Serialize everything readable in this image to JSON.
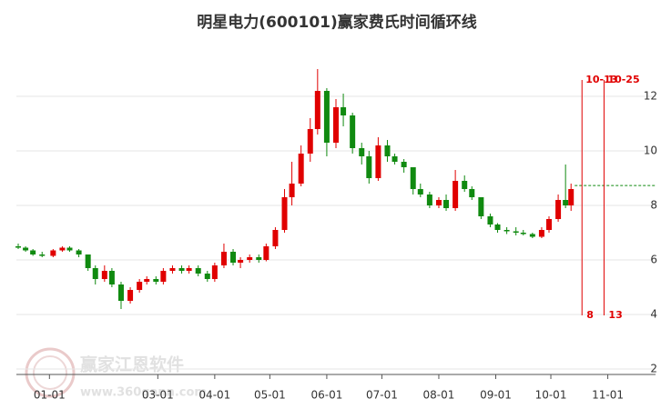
{
  "chart_data": {
    "type": "candlestick",
    "title": "明星电力(600101)赢家费氏时间循环线",
    "watermark": {
      "brand": "赢家江恩软件",
      "url": "www.360gann.com"
    },
    "up_color": "#e00000",
    "down_color": "#108a10",
    "ylim": [
      1.8,
      13.7
    ],
    "yticks": [
      2,
      4,
      6,
      8,
      10,
      12
    ],
    "grid": true,
    "xlim": [
      "12-14",
      "11-27"
    ],
    "xticks": [
      "01-01",
      "03-01",
      "04-01",
      "05-01",
      "06-01",
      "07-01",
      "08-01",
      "09-01",
      "10-01",
      "11-01"
    ],
    "candles": {
      "dates": [
        "12-15",
        "12-19",
        "12-23",
        "12-28",
        "01-03",
        "01-08",
        "01-12",
        "01-17",
        "01-22",
        "01-26",
        "01-31",
        "02-04",
        "02-09",
        "02-14",
        "02-19",
        "02-23",
        "02-28",
        "03-04",
        "03-09",
        "03-14",
        "03-18",
        "03-23",
        "03-28",
        "04-01",
        "04-06",
        "04-11",
        "04-15",
        "04-20",
        "04-25",
        "04-29",
        "05-04",
        "05-09",
        "05-13",
        "05-18",
        "05-23",
        "05-27",
        "06-01",
        "06-06",
        "06-10",
        "06-15",
        "06-20",
        "06-24",
        "06-29",
        "07-04",
        "07-08",
        "07-13",
        "07-18",
        "07-22",
        "07-27",
        "08-01",
        "08-05",
        "08-10",
        "08-15",
        "08-19",
        "08-24",
        "08-29",
        "09-02",
        "09-07",
        "09-12",
        "09-16",
        "09-21",
        "09-26",
        "09-30",
        "10-05",
        "10-09",
        "10-12"
      ],
      "open": [
        6.5,
        6.45,
        6.35,
        6.2,
        6.15,
        6.35,
        6.45,
        6.35,
        6.2,
        5.7,
        5.3,
        5.6,
        5.1,
        4.5,
        4.9,
        5.2,
        5.3,
        5.2,
        5.6,
        5.7,
        5.6,
        5.7,
        5.5,
        5.3,
        5.8,
        6.3,
        5.9,
        6.0,
        6.1,
        6.0,
        6.5,
        7.1,
        8.3,
        8.8,
        9.9,
        10.8,
        12.2,
        10.3,
        11.6,
        11.3,
        10.1,
        9.8,
        9.0,
        10.2,
        9.8,
        9.6,
        9.4,
        8.6,
        8.4,
        8.0,
        8.2,
        7.9,
        8.9,
        8.6,
        8.3,
        7.6,
        7.3,
        7.1,
        7.05,
        7.0,
        6.95,
        6.85,
        7.1,
        7.5,
        8.2,
        8.0
      ],
      "high": [
        6.6,
        6.5,
        6.4,
        6.3,
        6.4,
        6.5,
        6.5,
        6.4,
        6.2,
        5.8,
        5.8,
        5.7,
        5.2,
        5.0,
        5.3,
        5.4,
        5.4,
        5.7,
        5.8,
        5.8,
        5.8,
        5.8,
        5.6,
        5.9,
        6.6,
        6.4,
        6.1,
        6.2,
        6.2,
        6.6,
        7.2,
        8.6,
        9.6,
        10.2,
        11.2,
        13.0,
        12.3,
        11.9,
        12.1,
        11.4,
        10.3,
        10.0,
        10.5,
        10.4,
        9.9,
        9.7,
        9.4,
        8.8,
        8.5,
        8.3,
        8.4,
        9.3,
        9.1,
        8.7,
        8.3,
        7.7,
        7.35,
        7.2,
        7.2,
        7.1,
        7.0,
        7.2,
        7.6,
        8.4,
        9.5,
        8.8
      ],
      "low": [
        6.4,
        6.3,
        6.15,
        6.1,
        6.1,
        6.3,
        6.3,
        6.1,
        5.6,
        5.1,
        5.2,
        5.0,
        4.2,
        4.4,
        4.8,
        5.1,
        5.1,
        5.1,
        5.5,
        5.5,
        5.5,
        5.4,
        5.2,
        5.2,
        5.7,
        5.8,
        5.7,
        5.9,
        5.9,
        5.95,
        6.4,
        7.0,
        8.0,
        8.7,
        9.6,
        10.6,
        9.8,
        10.1,
        10.9,
        9.9,
        9.5,
        8.8,
        8.9,
        9.6,
        9.5,
        9.2,
        8.4,
        8.3,
        7.9,
        7.9,
        7.8,
        7.8,
        8.5,
        8.2,
        7.5,
        7.2,
        7.0,
        6.95,
        6.9,
        6.9,
        6.8,
        6.8,
        7.0,
        7.4,
        7.9,
        7.8
      ],
      "close": [
        6.45,
        6.35,
        6.2,
        6.15,
        6.35,
        6.45,
        6.35,
        6.2,
        5.7,
        5.3,
        5.6,
        5.1,
        4.5,
        4.9,
        5.2,
        5.3,
        5.2,
        5.6,
        5.7,
        5.6,
        5.7,
        5.5,
        5.3,
        5.8,
        6.3,
        5.9,
        6.0,
        6.1,
        6.0,
        6.5,
        7.1,
        8.3,
        8.8,
        9.9,
        10.8,
        12.2,
        10.3,
        11.6,
        11.3,
        10.1,
        9.8,
        9.0,
        10.2,
        9.8,
        9.6,
        9.4,
        8.6,
        8.4,
        8.0,
        8.2,
        7.9,
        8.9,
        8.6,
        8.3,
        7.6,
        7.3,
        7.1,
        7.05,
        7.0,
        6.95,
        6.85,
        7.1,
        7.5,
        8.2,
        8.0,
        8.6
      ]
    },
    "reference_line": {
      "value": 8.73,
      "color": "#108a10"
    },
    "cycle_color": "#e00000",
    "cycle_lines": [
      {
        "date": "10-13",
        "label": "8"
      },
      {
        "date": "10-25",
        "label": "13"
      }
    ]
  }
}
